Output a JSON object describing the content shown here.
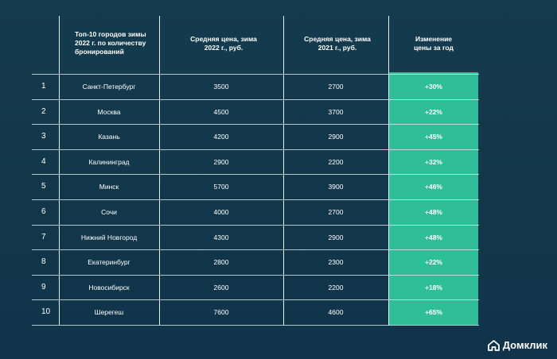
{
  "header": {
    "city_title": "Топ-10 городов зимы 2022 г. по количеству бронирований",
    "price_2022": "Средняя цена, зима 2022 г., руб.",
    "price_2021": "Средняя цена, зима 2021 г., руб.",
    "change": "Изменение цены за год"
  },
  "rows": [
    {
      "n": "1",
      "city": "Санкт-Петербург",
      "p22": "3500",
      "p21": "2700",
      "chg": "+30%"
    },
    {
      "n": "2",
      "city": "Москва",
      "p22": "4500",
      "p21": "3700",
      "chg": "+22%"
    },
    {
      "n": "3",
      "city": "Казань",
      "p22": "4200",
      "p21": "2900",
      "chg": "+45%"
    },
    {
      "n": "4",
      "city": "Калининград",
      "p22": "2900",
      "p21": "2200",
      "chg": "+32%"
    },
    {
      "n": "5",
      "city": "Минск",
      "p22": "5700",
      "p21": "3900",
      "chg": "+46%"
    },
    {
      "n": "6",
      "city": "Сочи",
      "p22": "4000",
      "p21": "2700",
      "chg": "+48%"
    },
    {
      "n": "7",
      "city": "Нижний Новгород",
      "p22": "4300",
      "p21": "2900",
      "chg": "+48%"
    },
    {
      "n": "8",
      "city": "Екатеринбург",
      "p22": "2800",
      "p21": "2300",
      "chg": "+22%"
    },
    {
      "n": "9",
      "city": "Новосибирск",
      "p22": "2600",
      "p21": "2200",
      "chg": "+18%"
    },
    {
      "n": "10",
      "city": "Шерегеш",
      "p22": "7600",
      "p21": "4600",
      "chg": "+65%"
    }
  ],
  "logo": {
    "text": "Домклик",
    "icon": "house-icon"
  },
  "colors": {
    "background": "#14394b",
    "accent": "#2fbf98"
  }
}
